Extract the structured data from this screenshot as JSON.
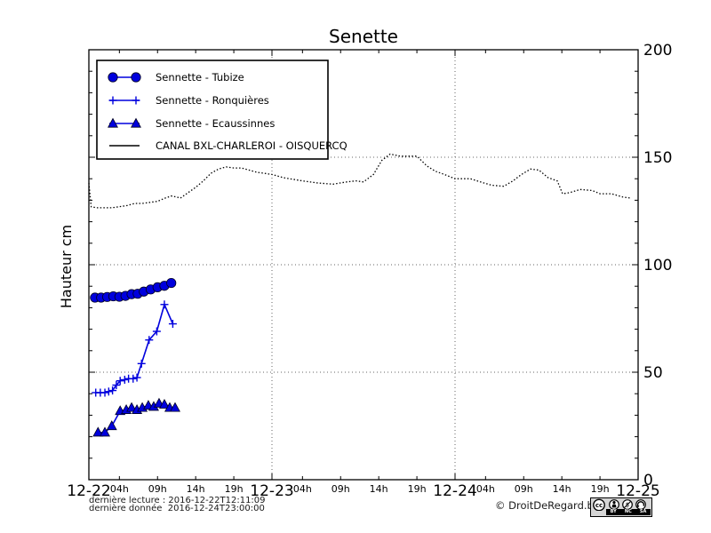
{
  "page": {
    "background": "#ffffff"
  },
  "chart_data": {
    "type": "line",
    "title": "Senette",
    "ylabel": "Hauteur cm",
    "ylim": [
      0,
      200
    ],
    "yticks": [
      0,
      50,
      100,
      150,
      200
    ],
    "y_minor_step": 10,
    "x_unit": "hours since 12-22 00:00",
    "xlim_hours": [
      0,
      72
    ],
    "x_day_labels": [
      {
        "label": "12-22",
        "hour": 0
      },
      {
        "label": "12-23",
        "hour": 24
      },
      {
        "label": "12-24",
        "hour": 48
      },
      {
        "label": "12-25",
        "hour": 72
      }
    ],
    "x_hour_labels": [
      {
        "label": "04h",
        "hour": 4
      },
      {
        "label": "09h",
        "hour": 9
      },
      {
        "label": "14h",
        "hour": 14
      },
      {
        "label": "19h",
        "hour": 19
      },
      {
        "label": "04h",
        "hour": 28
      },
      {
        "label": "09h",
        "hour": 33
      },
      {
        "label": "14h",
        "hour": 38
      },
      {
        "label": "19h",
        "hour": 43
      },
      {
        "label": "04h",
        "hour": 52
      },
      {
        "label": "09h",
        "hour": 57
      },
      {
        "label": "14h",
        "hour": 62
      },
      {
        "label": "19h",
        "hour": 67
      }
    ],
    "grid": true,
    "grid_style": "dotted",
    "legend_position": "upper-left",
    "colors": {
      "blue": "#0000dd",
      "black": "#000000",
      "grid": "#666666"
    },
    "series": [
      {
        "name": "Sennette - Tubize",
        "color": "#0000dd",
        "marker": "circle",
        "line": "solid",
        "points": [
          [
            0.8,
            84.7
          ],
          [
            1.6,
            84.7
          ],
          [
            2.4,
            85
          ],
          [
            3.2,
            85.3
          ],
          [
            4,
            85.1
          ],
          [
            4.8,
            85.5
          ],
          [
            5.6,
            86.3
          ],
          [
            6.4,
            86.5
          ],
          [
            7.2,
            87.5
          ],
          [
            8.1,
            88.5
          ],
          [
            9,
            89.5
          ],
          [
            9.9,
            90.2
          ],
          [
            10.8,
            91.5
          ]
        ]
      },
      {
        "name": "Sennette - Ronquières",
        "color": "#0000dd",
        "marker": "plus",
        "line": "solid",
        "points": [
          [
            0.9,
            40.5
          ],
          [
            1.5,
            40.5
          ],
          [
            2.1,
            40.5
          ],
          [
            2.6,
            41
          ],
          [
            3.1,
            41.5
          ],
          [
            3.6,
            44
          ],
          [
            4.1,
            46
          ],
          [
            4.7,
            46.5
          ],
          [
            5.2,
            47
          ],
          [
            5.8,
            47
          ],
          [
            6.3,
            47.5
          ],
          [
            6.9,
            54
          ],
          [
            7.9,
            65
          ],
          [
            8.9,
            69
          ],
          [
            9.9,
            81.5
          ],
          [
            11,
            72.5
          ]
        ]
      },
      {
        "name": "Sennette - Ecaussinnes",
        "color": "#0000dd",
        "marker": "triangle",
        "line": "solid",
        "points": [
          [
            1.2,
            22
          ],
          [
            2.1,
            22
          ],
          [
            3,
            25
          ],
          [
            4.1,
            32
          ],
          [
            4.9,
            32.5
          ],
          [
            5.6,
            33.5
          ],
          [
            6.3,
            32.5
          ],
          [
            7,
            33.5
          ],
          [
            7.8,
            34.5
          ],
          [
            8.5,
            34
          ],
          [
            9.2,
            35.5
          ],
          [
            9.9,
            35
          ],
          [
            10.6,
            33.5
          ],
          [
            11.3,
            33.5
          ]
        ]
      },
      {
        "name": "CANAL BXL-CHARLEROI  - OISQUERCQ",
        "color": "#000000",
        "marker": "none",
        "line": "dotted",
        "points": [
          [
            0,
            138
          ],
          [
            0.3,
            127
          ],
          [
            1,
            126.5
          ],
          [
            2,
            126.5
          ],
          [
            3,
            126.5
          ],
          [
            4,
            127
          ],
          [
            5,
            127.5
          ],
          [
            6,
            128.5
          ],
          [
            7,
            128.5
          ],
          [
            8,
            129
          ],
          [
            9,
            129.5
          ],
          [
            10,
            131
          ],
          [
            10.8,
            132
          ],
          [
            11.5,
            131.5
          ],
          [
            12,
            131
          ],
          [
            12.8,
            133
          ],
          [
            14,
            136
          ],
          [
            15,
            139
          ],
          [
            16,
            142.5
          ],
          [
            17,
            144.5
          ],
          [
            18,
            145.5
          ],
          [
            19,
            145
          ],
          [
            20,
            145
          ],
          [
            21,
            144
          ],
          [
            22,
            143
          ],
          [
            23,
            142.5
          ],
          [
            24,
            142
          ],
          [
            25.5,
            140.5
          ],
          [
            28,
            139
          ],
          [
            30,
            138
          ],
          [
            32,
            137.5
          ],
          [
            33.8,
            138.5
          ],
          [
            35,
            139
          ],
          [
            36,
            138.5
          ],
          [
            37.3,
            142
          ],
          [
            38.4,
            148.5
          ],
          [
            39.5,
            151.5
          ],
          [
            40.8,
            150.5
          ],
          [
            43,
            150.5
          ],
          [
            44.3,
            146
          ],
          [
            45.4,
            143.5
          ],
          [
            46.6,
            142
          ],
          [
            48,
            140
          ],
          [
            50,
            140
          ],
          [
            51.8,
            138
          ],
          [
            52.8,
            137
          ],
          [
            54.4,
            136.5
          ],
          [
            55.6,
            139
          ],
          [
            56.7,
            142
          ],
          [
            57.9,
            144.5
          ],
          [
            59,
            144
          ],
          [
            60.2,
            140.5
          ],
          [
            61.4,
            139
          ],
          [
            62.1,
            133
          ],
          [
            63,
            133.5
          ],
          [
            64.4,
            135
          ],
          [
            66,
            134.5
          ],
          [
            67,
            133
          ],
          [
            68.5,
            133
          ],
          [
            70,
            131.5
          ],
          [
            71,
            131
          ]
        ]
      }
    ]
  },
  "footer": {
    "last_read": "dernière lecture : 2016-12-22T12:11:09",
    "last_data": "dernière donnée  2016-12-24T23:00:00",
    "copyright": "© DroitDeRegard.be",
    "license": {
      "name": "cc-by-nc-sa",
      "cc_label": "cc",
      "nc_symbol": "$",
      "badge_letters": [
        "BY",
        "NC",
        "SA"
      ]
    }
  }
}
